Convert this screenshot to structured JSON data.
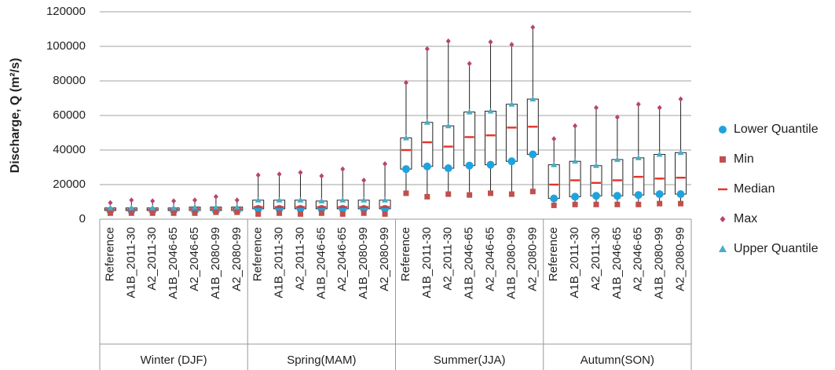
{
  "chart_data": {
    "type": "box",
    "y_label": "Discharge, Q (m²/s)",
    "ylim": [
      0,
      120000
    ],
    "yticks": [
      0,
      20000,
      40000,
      60000,
      80000,
      100000,
      120000
    ],
    "grid": true,
    "legend": "right",
    "groups": [
      {
        "name": "Winter (DJF)",
        "categories": [
          "Reference",
          "A1B_2011-30",
          "A2_2011-30",
          "A1B_2046-65",
          "A2_2046-65",
          "A1B_2080-99",
          "A2_2080-99"
        ]
      },
      {
        "name": "Spring(MAM)",
        "categories": [
          "Reference",
          "A1B_2011-30",
          "A2_2011-30",
          "A1B_2046-65",
          "A2_2046-65",
          "A1B_2080-99",
          "A2_2080-99"
        ]
      },
      {
        "name": "Summer(JJA)",
        "categories": [
          "Reference",
          "A1B_2011-30",
          "A2_2011-30",
          "A1B_2046-65",
          "A2_2046-65",
          "A1B_2080-99",
          "A2_2080-99"
        ]
      },
      {
        "name": "Autumn(SON)",
        "categories": [
          "Reference",
          "A1B_2011-30",
          "A2_2011-30",
          "A1B_2046-65",
          "A2_2046-65",
          "A1B_2080-99",
          "A2_2080-99"
        ]
      }
    ],
    "series": [
      {
        "name": "Lower Quantile",
        "color": "#1fa3de",
        "marker": "circle",
        "values": [
          5000,
          5000,
          5000,
          5000,
          5000,
          5000,
          5000,
          6000,
          6000,
          6000,
          6000,
          6000,
          6000,
          6000,
          29000,
          30500,
          29500,
          31000,
          31500,
          33500,
          37500,
          12000,
          13000,
          13500,
          13500,
          14000,
          14500,
          14500
        ]
      },
      {
        "name": "Min",
        "color": "#c0504d",
        "marker": "square",
        "values": [
          3500,
          3500,
          3500,
          3500,
          3500,
          4000,
          4000,
          3000,
          3500,
          3000,
          3500,
          3000,
          3500,
          3000,
          15000,
          13000,
          14500,
          14000,
          15000,
          14500,
          16000,
          8000,
          8500,
          8500,
          8500,
          8500,
          9000,
          9000
        ]
      },
      {
        "name": "Median",
        "color": "#e8302a",
        "marker": "dash",
        "values": [
          5500,
          5500,
          5500,
          5500,
          6000,
          6000,
          6000,
          7000,
          7000,
          7000,
          7000,
          7000,
          7000,
          7000,
          40000,
          44500,
          42000,
          47500,
          48500,
          53000,
          53500,
          20000,
          22500,
          21000,
          22500,
          24500,
          23500,
          24000
        ]
      },
      {
        "name": "Max",
        "color": "#b8456f",
        "marker": "diamond",
        "values": [
          9500,
          11000,
          10500,
          10500,
          11000,
          13000,
          11000,
          25500,
          26000,
          27000,
          25000,
          29000,
          22500,
          32000,
          79000,
          98500,
          103000,
          90000,
          102500,
          101000,
          111000,
          46500,
          54000,
          64500,
          59000,
          66500,
          64500,
          69500
        ]
      },
      {
        "name": "Upper Quantile",
        "color": "#4bacc6",
        "marker": "triangle",
        "values": [
          6500,
          6500,
          6500,
          6500,
          7000,
          7000,
          7000,
          11000,
          11000,
          11000,
          10500,
          11000,
          11000,
          11000,
          47000,
          56000,
          54000,
          62000,
          62500,
          66500,
          69500,
          31500,
          33500,
          31000,
          34500,
          35500,
          37500,
          38500
        ]
      }
    ]
  }
}
